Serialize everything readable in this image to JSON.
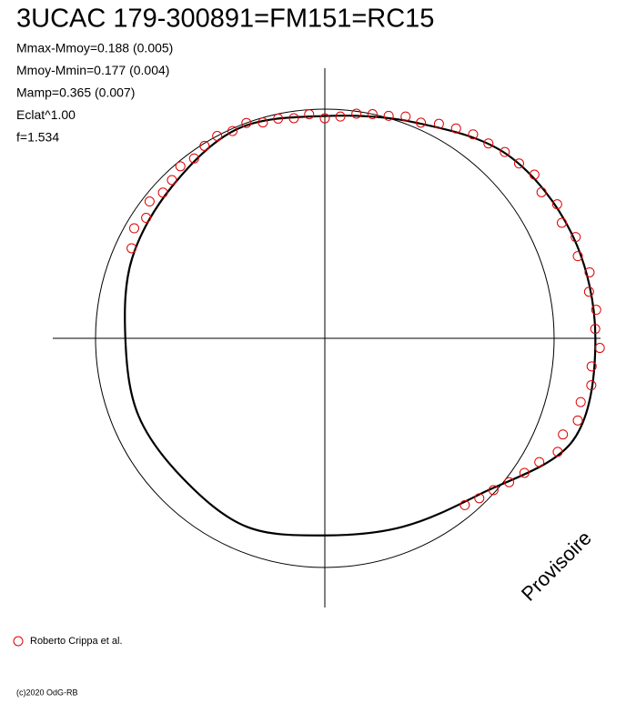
{
  "chart_data": {
    "type": "polar",
    "title": "3UCAC 179-300891=FM151=RC15",
    "annotations": [
      "Mmax-Mmoy=0.188 (0.005)",
      "Mmoy-Mmin=0.177 (0.004)",
      "Mamp=0.365 (0.007)",
      "Eclat^1.00",
      "f=1.534"
    ],
    "watermark": "Provisoire",
    "footer": "(c)2020 OdG-RB",
    "reference_circle": 1,
    "fit": {
      "color": "#000000",
      "angles": [
        0,
        22.5,
        45,
        67.5,
        90,
        112.5,
        135,
        157.5,
        180,
        202.5,
        225,
        247.5,
        270,
        292.5,
        315,
        337.5
      ],
      "values": [
        1.18,
        1.17,
        1.13,
        1.02,
        0.97,
        0.99,
        0.94,
        0.91,
        0.87,
        0.88,
        0.87,
        0.89,
        0.86,
        0.89,
        0.96,
        1.17
      ]
    },
    "series": [
      {
        "name": "Roberto Crippa et al.",
        "color": "#e00000",
        "angles": [
          155,
          150,
          146,
          142,
          138,
          134,
          130,
          126,
          122,
          118,
          114,
          110,
          106,
          102,
          98,
          94,
          90,
          86,
          82,
          78,
          74,
          70,
          66,
          62,
          58,
          54,
          50,
          46,
          42,
          38,
          34,
          30,
          26,
          22,
          18,
          14,
          10,
          6,
          2,
          -2,
          -6,
          -10,
          -14,
          -18,
          -22,
          -26,
          -30,
          -34,
          -38,
          -42,
          -46,
          -50
        ],
        "values": [
          0.93,
          0.96,
          0.94,
          0.97,
          0.95,
          0.96,
          0.98,
          0.97,
          0.99,
          1.0,
          0.99,
          1.0,
          0.98,
          0.98,
          0.97,
          0.98,
          0.96,
          0.97,
          0.99,
          1.0,
          1.01,
          1.03,
          1.03,
          1.06,
          1.08,
          1.1,
          1.11,
          1.13,
          1.14,
          1.16,
          1.14,
          1.17,
          1.15,
          1.18,
          1.16,
          1.19,
          1.17,
          1.19,
          1.18,
          1.2,
          1.17,
          1.18,
          1.15,
          1.16,
          1.12,
          1.13,
          1.08,
          1.05,
          1.02,
          0.99,
          0.97,
          0.95
        ]
      }
    ]
  }
}
